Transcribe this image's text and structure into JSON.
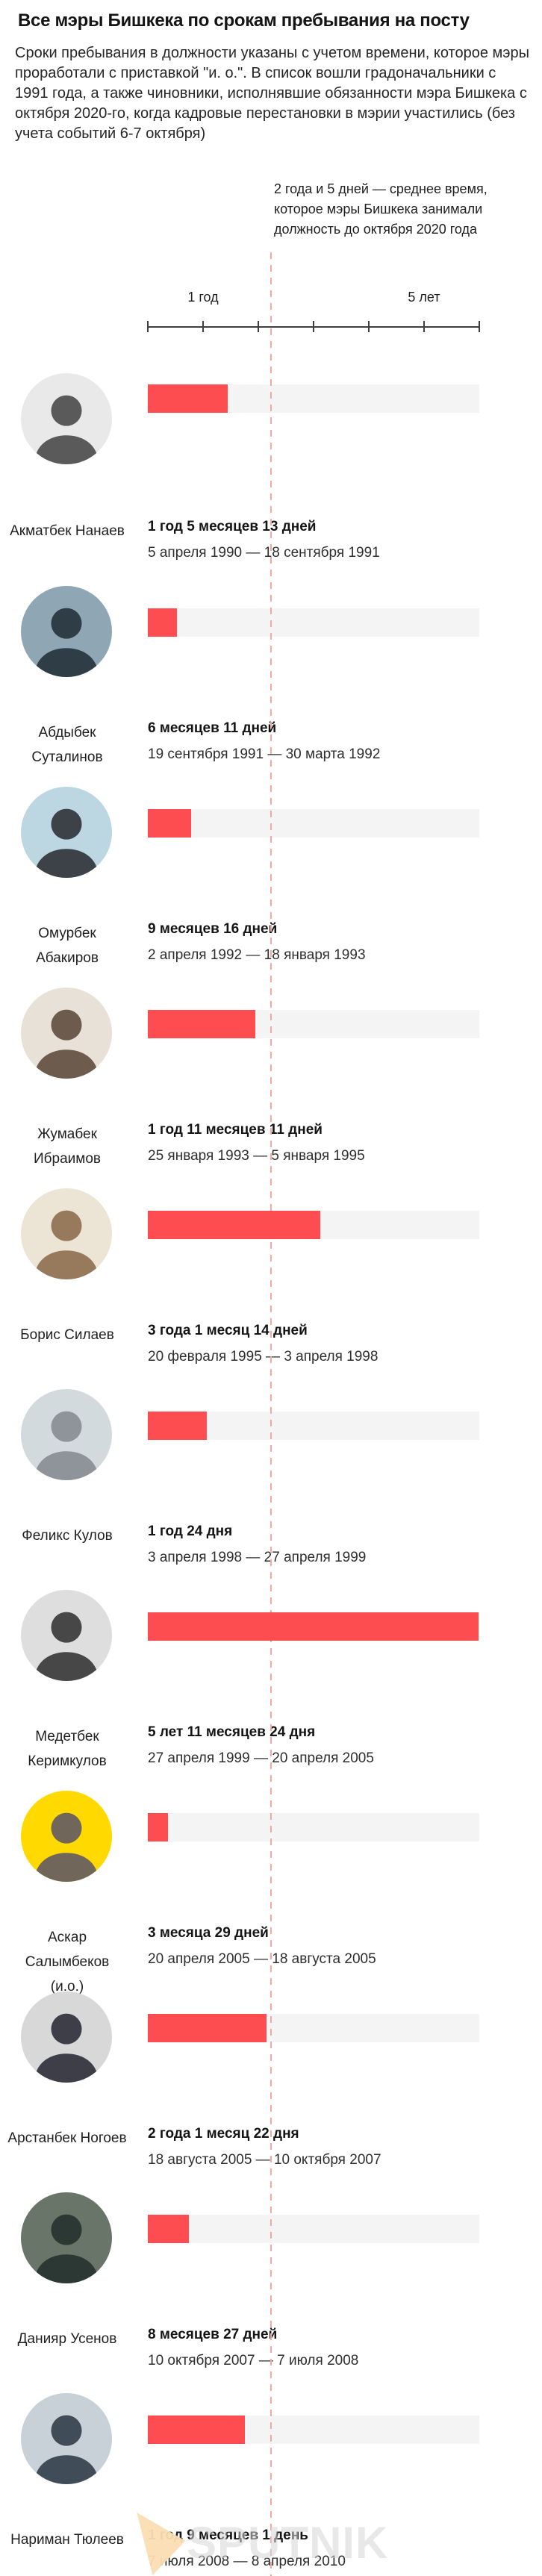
{
  "header": {
    "title": "Все мэры Бишкека по срокам пребывания на посту",
    "intro": "Сроки пребывания в должности указаны с учетом времени, которое мэры проработали с приставкой \"и. о.\". В список вошли градоначальники с 1991 года, а также чиновники, исполнявшие обязанности мэра Бишкека с октября 2020-го, когда кадровые перестановки в мэрии участились (без учета событий 6-7 октября)"
  },
  "average_note": "2 года и 5 дней — среднее время, которое мэры Бишкека занимали должность до октября 2020 года",
  "axis": {
    "label_1_year": "1 год",
    "label_5_years": "5 лет"
  },
  "colors": {
    "bar": "#fd4d50",
    "track": "#f4f4f4",
    "dashed_line": "#f6a8a2",
    "text_dark": "#141414"
  },
  "watermark": {
    "brand": "SPUTNIK"
  },
  "chart_data": {
    "type": "bar",
    "orientation": "horizontal",
    "title": "Все мэры Бишкека по срокам пребывания на посту",
    "unit": "years",
    "x_ticks_years": [
      0,
      1,
      2,
      3,
      4,
      5,
      6
    ],
    "xlim_years": [
      0,
      6
    ],
    "x_tick_labels_shown": {
      "1": "1 год",
      "5": "5 лет"
    },
    "average_line": {
      "label": "2 года и 5 дней — среднее время, которое мэры Бишкека занимали должность до октября 2020 года",
      "stated_value": "2 года и 5 дней",
      "drawn_at_years": 2.2
    },
    "grid": false,
    "mayors": [
      {
        "name": "Акматбек Нанаев",
        "duration": "1 год 5 месяцев 13 дней",
        "dates": "5 апреля 1990 — 18 сентября 1991",
        "years": 1.45,
        "avatar_color": "#e9e9e9",
        "avatar_tone": "#5a5a5a"
      },
      {
        "name": "Абдыбек Суталинов",
        "duration": "6 месяцев 11 дней",
        "dates": "19 сентября 1991 — 30 марта 1992",
        "years": 0.53,
        "avatar_color": "#8fa6b4",
        "avatar_tone": "#2f3d46"
      },
      {
        "name": "Омурбек Абакиров",
        "duration": "9 месяцев 16 дней",
        "dates": "2 апреля 1992 — 18 января 1993",
        "years": 0.79,
        "avatar_color": "#bcd6e2",
        "avatar_tone": "#3c4248"
      },
      {
        "name": "Жумабек Ибраимов",
        "duration": "1 год 11 месяцев 11 дней",
        "dates": "25 января 1993 — 5 января 1995",
        "years": 1.95,
        "avatar_color": "#e8e1d7",
        "avatar_tone": "#6d5c4d"
      },
      {
        "name": "Борис Силаев",
        "duration": "3 года 1 месяц 14 дней",
        "dates": "20 февраля 1995 — 3 апреля 1998",
        "years": 3.12,
        "avatar_color": "#ece4d4",
        "avatar_tone": "#97795c"
      },
      {
        "name": "Феликс Кулов",
        "duration": "1 год 24 дня",
        "dates": "3 апреля 1998 — 27 апреля 1999",
        "years": 1.07,
        "avatar_color": "#d3dade",
        "avatar_tone": "#8e9499"
      },
      {
        "name": "Медетбек Керимкулов",
        "duration": "5 лет 11 месяцев 24 дня",
        "dates": "27 апреля 1999 — 20 апреля 2005",
        "years": 5.98,
        "avatar_color": "#dedede",
        "avatar_tone": "#474747"
      },
      {
        "name": "Аскар Салымбеков (и.о.)",
        "duration": "3 месяца 29 дней",
        "dates": "20 апреля 2005 — 18 августа 2005",
        "years": 0.36,
        "avatar_color": "#ffd900",
        "avatar_tone": "#70675a"
      },
      {
        "name": "Арстанбек Ногоев",
        "duration": "2 года 1 месяц 22 дня",
        "dates": "18 августа 2005 — 10 октября 2007",
        "years": 2.15,
        "avatar_color": "#d8d8d8",
        "avatar_tone": "#3e3e48"
      },
      {
        "name": "Данияр Усенов",
        "duration": "8 месяцев 27 дней",
        "dates": "10 октября 2007 — 7 июля 2008",
        "years": 0.74,
        "avatar_color": "#687568",
        "avatar_tone": "#2c3833"
      },
      {
        "name": "Нариман Тюлеев",
        "duration": "1 год 9 месяцев 1 день",
        "dates": "7 июля 2008 — 8 апреля 2010",
        "years": 1.75,
        "avatar_color": "#c8d0d8",
        "avatar_tone": "#414c59"
      }
    ]
  }
}
